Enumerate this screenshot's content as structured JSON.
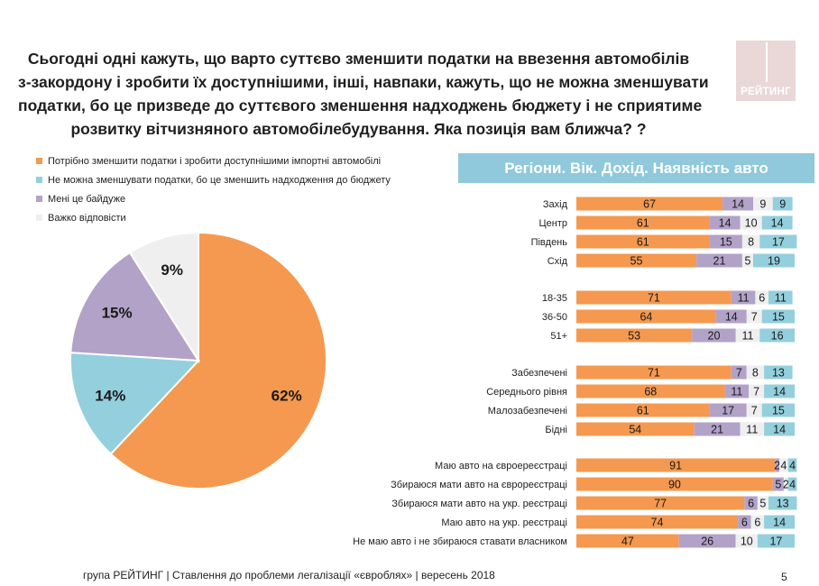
{
  "title_lines": [
    "Сьогодні одні кажуть, що варто суттєво зменшити податки на ввезення автомобілів",
    "з-закордону і зробити їх доступнішими, інші, навпаки, кажуть, що не можна зменшувати",
    "податки, бо це призведе до суттєвого зменшення надходжень бюджету і не сприятиме",
    "розвитку вітчизняного автомобілебудування. Яка позиція вам ближча? ?"
  ],
  "logo_text": "РЕЙТИНГ",
  "colors": {
    "orange": "#f4994f",
    "blue": "#93cfdd",
    "purple": "#b2a2c8",
    "gray": "#efefef",
    "banner": "#8fc9db"
  },
  "banner": "Регіони. Вік. Дохід. Наявність авто",
  "footer": "група РЕЙТИНГ | Ставлення до проблеми легалізації «євроблях» | вересень 2018",
  "page_number": "5",
  "chart_data": [
    {
      "type": "pie",
      "legend": [
        "Потрібно зменшити податки і зробити доступнішими імпортні автомобілі",
        "Не можна зменшувати податки, бо це зменшить надходження до бюджету",
        "Мені це байдуже",
        "Важко відповісти"
      ],
      "slices": [
        {
          "name": "Потрібно зменшити податки і зробити доступнішими імпортні автомобілі",
          "value": 62,
          "label": "62%",
          "color": "#f4994f"
        },
        {
          "name": "Не можна зменшувати податки, бо це зменшить надходження до бюджету",
          "value": 14,
          "label": "14%",
          "color": "#93cfdd"
        },
        {
          "name": "Мені це байдуже",
          "value": 15,
          "label": "15%",
          "color": "#b2a2c8"
        },
        {
          "name": "Важко відповісти",
          "value": 9,
          "label": "9%",
          "color": "#efefef"
        }
      ]
    },
    {
      "type": "bar",
      "orientation": "horizontal",
      "stacked": true,
      "xlim": [
        0,
        100
      ],
      "groups": [
        {
          "rows": [
            {
              "label": "Захід",
              "values": [
                67,
                14,
                9,
                9
              ]
            },
            {
              "label": "Центр",
              "values": [
                61,
                14,
                10,
                14
              ]
            },
            {
              "label": "Південь",
              "values": [
                61,
                15,
                8,
                17
              ]
            },
            {
              "label": "Схід",
              "values": [
                55,
                21,
                5,
                19
              ]
            }
          ]
        },
        {
          "rows": [
            {
              "label": "18-35",
              "values": [
                71,
                11,
                6,
                11
              ]
            },
            {
              "label": "36-50",
              "values": [
                64,
                14,
                7,
                15
              ]
            },
            {
              "label": "51+",
              "values": [
                53,
                20,
                11,
                16
              ]
            }
          ]
        },
        {
          "rows": [
            {
              "label": "Забезпечені",
              "values": [
                71,
                7,
                8,
                13
              ]
            },
            {
              "label": "Середнього рівня",
              "values": [
                68,
                11,
                7,
                14
              ]
            },
            {
              "label": "Малозабезпечені",
              "values": [
                61,
                17,
                7,
                15
              ]
            },
            {
              "label": "Бідні",
              "values": [
                54,
                21,
                11,
                14
              ]
            }
          ]
        },
        {
          "rows": [
            {
              "label": "Маю авто на євроереєстраці",
              "values": [
                91,
                2,
                4,
                4
              ]
            },
            {
              "label": "Збираюся мати авто на єврореєстраці",
              "values": [
                90,
                5,
                2,
                4
              ]
            },
            {
              "label": "Збираюся мати авто на укр. реєстраці",
              "values": [
                77,
                6,
                5,
                13
              ]
            },
            {
              "label": "Маю авто на укр. реєстраці",
              "values": [
                74,
                6,
                6,
                14
              ]
            },
            {
              "label": "Не маю авто і не збираюся ставати власником",
              "values": [
                47,
                26,
                10,
                17
              ]
            }
          ]
        }
      ]
    }
  ]
}
